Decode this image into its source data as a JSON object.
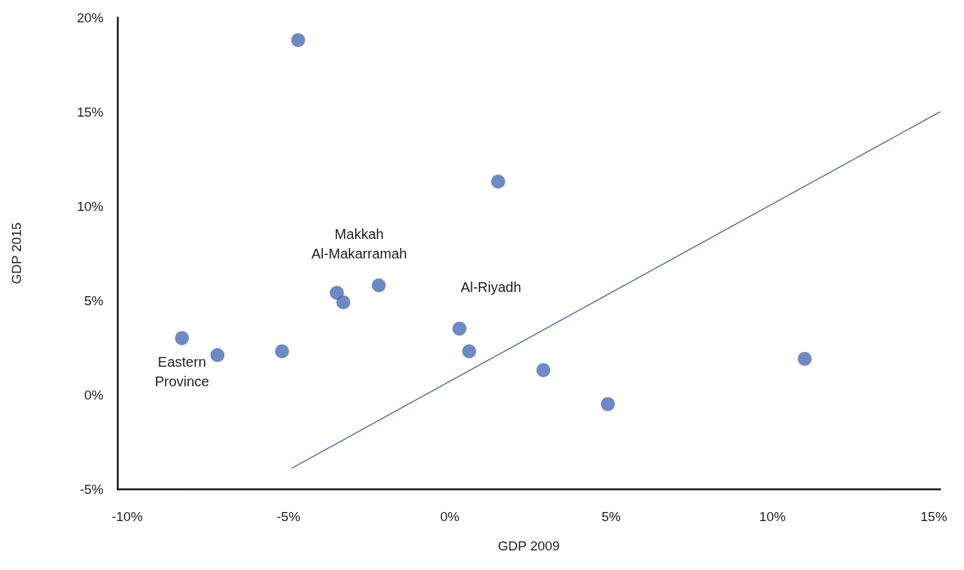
{
  "chart_data": {
    "type": "scatter",
    "xlabel": "GDP 2009",
    "ylabel": "GDP 2015",
    "xlim": [
      -10.3,
      15.2
    ],
    "xticks": [
      {
        "value": -10,
        "label": "-10%"
      },
      {
        "value": -5,
        "label": "-5%"
      },
      {
        "value": 0,
        "label": "0%"
      },
      {
        "value": 5,
        "label": "5%"
      },
      {
        "value": 10,
        "label": "10%"
      },
      {
        "value": 15,
        "label": "15%"
      }
    ],
    "ylim": [
      -5,
      20
    ],
    "yticks": [
      {
        "value": -5,
        "label": "-5%"
      },
      {
        "value": 0,
        "label": "0%"
      },
      {
        "value": 5,
        "label": "5%"
      },
      {
        "value": 10,
        "label": "10%"
      },
      {
        "value": 15,
        "label": "15%"
      },
      {
        "value": 20,
        "label": "20%"
      }
    ],
    "grid": false,
    "marker": "circle",
    "series": [
      {
        "color": "#4a6db5",
        "x": [
          -4.7,
          1.5,
          -2.2,
          -3.5,
          -3.3,
          0.3,
          -8.3,
          -7.2,
          -5.2,
          0.6,
          2.9,
          4.9,
          11.0
        ],
        "values": [
          18.8,
          11.3,
          5.8,
          5.4,
          4.9,
          3.5,
          3.0,
          2.1,
          2.3,
          2.3,
          1.3,
          -0.5,
          1.9
        ]
      },
      {
        "type": "line",
        "color": "#4a6db5",
        "x": [
          -4.9,
          15.2
        ],
        "values": [
          -3.9,
          15.0
        ],
        "line_style": "solid",
        "marker": "none"
      }
    ],
    "annotations": [
      {
        "text": "Makkah\nAl-Makarramah",
        "x": -3.5,
        "y": 5.4
      },
      {
        "text": "Al-Riyadh",
        "x": 0.3,
        "y": 3.5
      },
      {
        "text": "Eastern\nProvince",
        "x": -8.3,
        "y": 3.0
      }
    ]
  }
}
